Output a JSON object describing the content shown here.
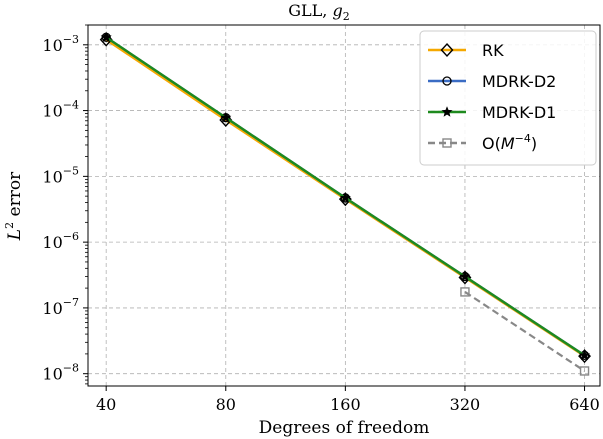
{
  "chart_data": {
    "type": "line",
    "title_text": "GLL, ",
    "title_math": "g",
    "title_sub": "2",
    "xlabel": "Degrees of freedom",
    "ylabel_base": "L",
    "ylabel_sup": "2",
    "ylabel_rest": " error",
    "x_scale": "log",
    "y_scale": "log",
    "xlim": [
      36,
      700
    ],
    "ylim": [
      6.5e-09,
      0.002
    ],
    "x_ticks": [
      40,
      80,
      160,
      320,
      640
    ],
    "x_tick_labels": [
      "40",
      "80",
      "160",
      "320",
      "640"
    ],
    "y_ticks": [
      0.001,
      0.0001,
      1e-05,
      1e-06,
      1e-07,
      1e-08
    ],
    "y_tick_base": [
      "10",
      "10",
      "10",
      "10",
      "10",
      "10"
    ],
    "y_tick_exp": [
      "−3",
      "−4",
      "−5",
      "−6",
      "−7",
      "−8"
    ],
    "grid": true,
    "legend_position": "top-right",
    "series": [
      {
        "name": "RK",
        "color": "#f5a800",
        "marker": "diamond",
        "dashed": false,
        "x": [
          40,
          80,
          160,
          320,
          640
        ],
        "y": [
          0.0012,
          7.2e-05,
          4.5e-06,
          2.9e-07,
          1.85e-08
        ]
      },
      {
        "name": "MDRK-D2",
        "color": "#3a6cc4",
        "marker": "circle",
        "dashed": false,
        "x": [
          40,
          80,
          160,
          320,
          640
        ],
        "y": [
          0.0013,
          7.8e-05,
          4.7e-06,
          3e-07,
          1.9e-08
        ]
      },
      {
        "name": "MDRK-D1",
        "color": "#1e8a1e",
        "marker": "star",
        "dashed": false,
        "x": [
          40,
          80,
          160,
          320,
          640
        ],
        "y": [
          0.0013,
          7.8e-05,
          4.7e-06,
          3e-07,
          1.9e-08
        ]
      },
      {
        "name_prefix": "O(",
        "name_math": "M",
        "name_sup": "−4",
        "name_suffix": ")",
        "color": "#888888",
        "marker": "square",
        "dashed": true,
        "x": [
          320,
          640
        ],
        "y": [
          1.75e-07,
          1.1e-08
        ]
      }
    ]
  }
}
